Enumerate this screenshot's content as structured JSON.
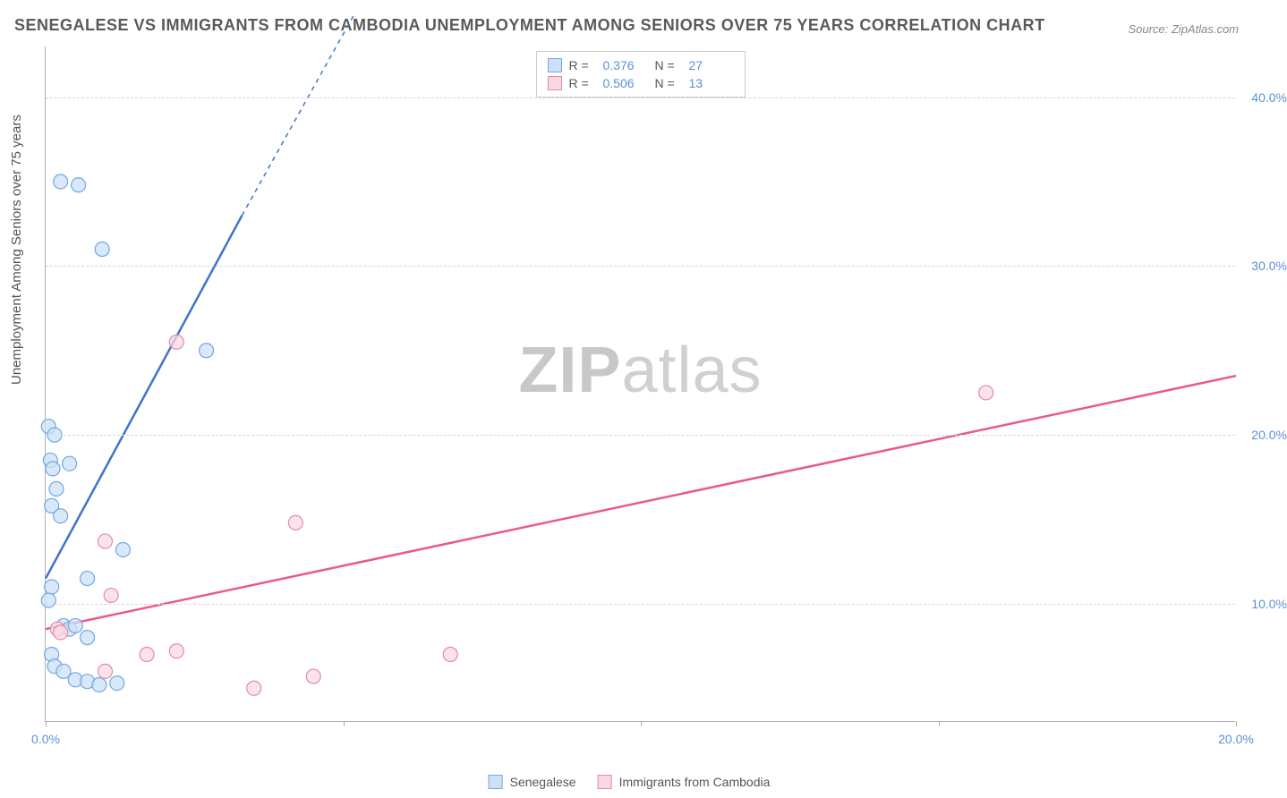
{
  "title": "SENEGALESE VS IMMIGRANTS FROM CAMBODIA UNEMPLOYMENT AMONG SENIORS OVER 75 YEARS CORRELATION CHART",
  "source": "Source: ZipAtlas.com",
  "ylabel": "Unemployment Among Seniors over 75 years",
  "watermark_bold": "ZIP",
  "watermark_light": "atlas",
  "chart": {
    "type": "scatter",
    "xlim": [
      0,
      20
    ],
    "ylim": [
      3,
      43
    ],
    "x_ticks": [
      0,
      5,
      10,
      15,
      20
    ],
    "x_tick_labels": [
      "0.0%",
      "",
      "",
      "",
      "20.0%"
    ],
    "y_ticks": [
      10,
      20,
      30,
      40
    ],
    "y_tick_labels": [
      "10.0%",
      "20.0%",
      "30.0%",
      "40.0%"
    ],
    "background_color": "#ffffff",
    "grid_color": "#d8d8d8",
    "axis_color": "#b0b0b0",
    "tick_label_color": "#5b8fd6",
    "series": [
      {
        "name": "Senegalese",
        "color_fill": "#cde2f7",
        "color_stroke": "#6fa8e6",
        "line_color": "#3f74c9",
        "marker_radius": 8,
        "R": "0.376",
        "N": "27",
        "points": [
          [
            0.25,
            35.0
          ],
          [
            0.55,
            34.8
          ],
          [
            0.95,
            31.0
          ],
          [
            2.7,
            25.0
          ],
          [
            0.05,
            20.5
          ],
          [
            0.15,
            20.0
          ],
          [
            0.08,
            18.5
          ],
          [
            0.12,
            18.0
          ],
          [
            0.4,
            18.3
          ],
          [
            0.18,
            16.8
          ],
          [
            0.1,
            15.8
          ],
          [
            0.25,
            15.2
          ],
          [
            1.3,
            13.2
          ],
          [
            0.1,
            11.0
          ],
          [
            0.7,
            11.5
          ],
          [
            0.05,
            10.2
          ],
          [
            0.3,
            8.7
          ],
          [
            0.4,
            8.5
          ],
          [
            0.5,
            8.7
          ],
          [
            0.7,
            8.0
          ],
          [
            0.1,
            7.0
          ],
          [
            0.15,
            6.3
          ],
          [
            0.3,
            6.0
          ],
          [
            0.5,
            5.5
          ],
          [
            0.7,
            5.4
          ],
          [
            0.9,
            5.2
          ],
          [
            1.2,
            5.3
          ]
        ],
        "trend": {
          "x1": 0,
          "y1": 11.5,
          "x2": 3.3,
          "y2": 33.0,
          "dash_to_x": 5.2,
          "dash_to_y": 45.0
        }
      },
      {
        "name": "Immigrants from Cambodia",
        "color_fill": "#f8d9e1",
        "color_stroke": "#e68aa6",
        "line_color": "#e75a8a",
        "marker_radius": 8,
        "R": "0.506",
        "N": "13",
        "points": [
          [
            2.2,
            25.5
          ],
          [
            15.8,
            22.5
          ],
          [
            4.2,
            14.8
          ],
          [
            1.0,
            13.7
          ],
          [
            1.1,
            10.5
          ],
          [
            0.2,
            8.5
          ],
          [
            0.25,
            8.3
          ],
          [
            1.7,
            7.0
          ],
          [
            2.2,
            7.2
          ],
          [
            6.8,
            7.0
          ],
          [
            1.0,
            6.0
          ],
          [
            3.5,
            5.0
          ],
          [
            4.5,
            5.7
          ]
        ],
        "trend": {
          "x1": 0,
          "y1": 8.5,
          "x2": 20,
          "y2": 23.5
        }
      }
    ]
  },
  "legend_top": {
    "r_label": "R  =",
    "n_label": "N  ="
  },
  "legend_bottom": [
    {
      "label": "Senegalese",
      "fill": "#cde2f7",
      "stroke": "#6fa8e6"
    },
    {
      "label": "Immigrants from Cambodia",
      "fill": "#f8d9e1",
      "stroke": "#e68aa6"
    }
  ]
}
